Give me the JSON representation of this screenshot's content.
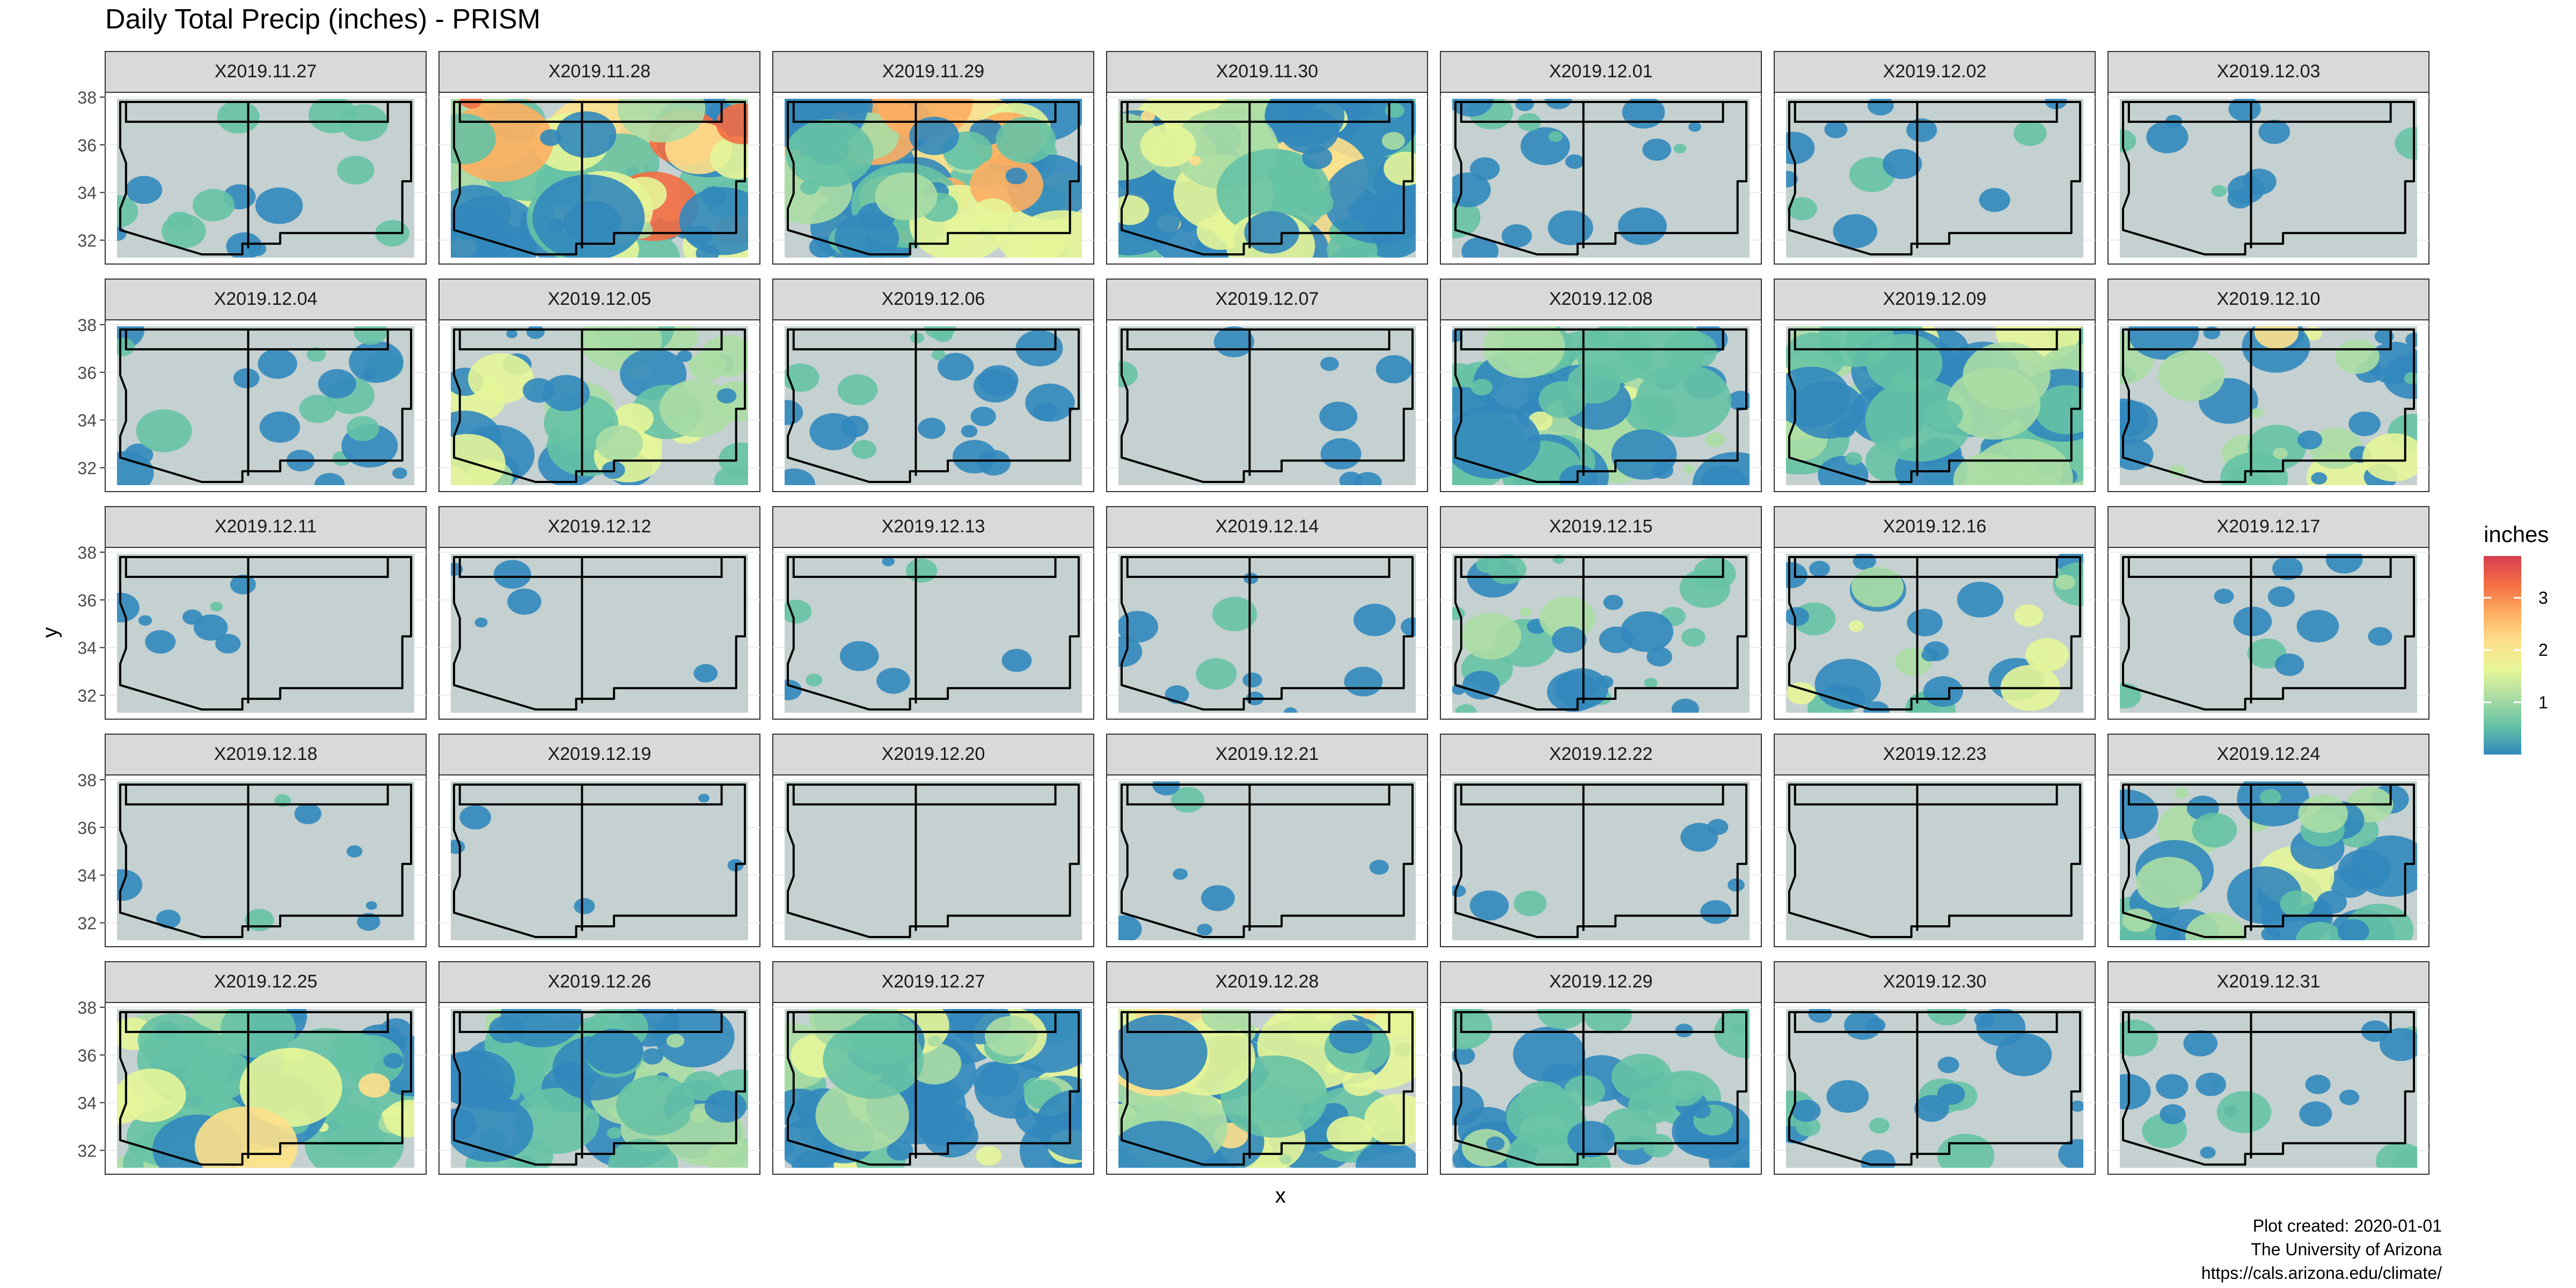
{
  "chart_data": {
    "type": "heatmap",
    "title": "Daily Total Precip (inches) - PRISM",
    "xlabel": "x",
    "ylabel": "y",
    "y_ticks": [
      "32",
      "34",
      "36",
      "38"
    ],
    "ylim": [
      31,
      38.2
    ],
    "facets": [
      "X2019.11.27",
      "X2019.11.28",
      "X2019.11.29",
      "X2019.11.30",
      "X2019.12.01",
      "X2019.12.02",
      "X2019.12.03",
      "X2019.12.04",
      "X2019.12.05",
      "X2019.12.06",
      "X2019.12.07",
      "X2019.12.08",
      "X2019.12.09",
      "X2019.12.10",
      "X2019.12.11",
      "X2019.12.12",
      "X2019.12.13",
      "X2019.12.14",
      "X2019.12.15",
      "X2019.12.16",
      "X2019.12.17",
      "X2019.12.18",
      "X2019.12.19",
      "X2019.12.20",
      "X2019.12.21",
      "X2019.12.22",
      "X2019.12.23",
      "X2019.12.24",
      "X2019.12.25",
      "X2019.12.26",
      "X2019.12.27",
      "X2019.12.28",
      "X2019.12.29",
      "X2019.12.30",
      "X2019.12.31"
    ],
    "coverage": [
      0.15,
      0.95,
      1.0,
      0.95,
      0.22,
      0.12,
      0.08,
      0.25,
      0.55,
      0.25,
      0.06,
      0.75,
      0.85,
      0.45,
      0.05,
      0.02,
      0.06,
      0.12,
      0.35,
      0.38,
      0.08,
      0.06,
      0.01,
      0.0,
      0.04,
      0.04,
      0.0,
      0.55,
      0.8,
      0.75,
      0.8,
      0.95,
      0.6,
      0.25,
      0.22
    ],
    "max_precip": [
      0.9,
      3.4,
      3.0,
      2.4,
      0.8,
      0.8,
      0.7,
      0.9,
      1.9,
      0.9,
      0.5,
      1.5,
      1.9,
      2.2,
      0.5,
      0.3,
      0.5,
      0.6,
      1.0,
      1.7,
      0.7,
      0.6,
      0.3,
      0.2,
      0.4,
      0.4,
      0.2,
      1.5,
      2.1,
      1.4,
      2.0,
      2.2,
      1.3,
      0.8,
      0.7
    ],
    "legend": {
      "title": "inches",
      "ticks": [
        "1",
        "2",
        "3"
      ],
      "range": [
        0,
        3.8
      ],
      "colors": [
        "#3288bd",
        "#66c2a5",
        "#abdda4",
        "#e6f598",
        "#fee08b",
        "#fdae61",
        "#f46d43",
        "#d53e4f"
      ]
    },
    "panel_background": "#c4d1d0",
    "strip_background": "#d9d9d9"
  },
  "caption": {
    "line1": "Plot created: 2020-01-01",
    "line2": "The University of Arizona",
    "line3": "https://cals.arizona.edu/climate/"
  }
}
